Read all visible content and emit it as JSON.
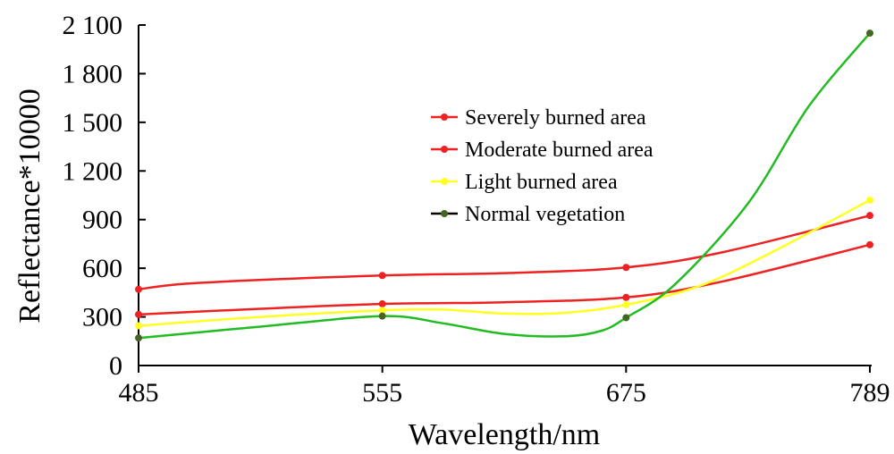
{
  "chart_data": {
    "type": "line",
    "xlabel": "Wavelength/nm",
    "ylabel": "Reflectance*10000",
    "categories": [
      "485",
      "555",
      "675",
      "789"
    ],
    "yticks": [
      "0",
      "300",
      "600",
      "900",
      "1 200",
      "1 500",
      "1 800",
      "2 100"
    ],
    "ylim": [
      0,
      2100
    ],
    "grid": false,
    "legend_position": "center-right",
    "series": [
      {
        "name": "Severely burned area",
        "color": "#ee2222",
        "values": [
          470,
          555,
          605,
          925
        ],
        "curve": [
          [
            0,
            470
          ],
          [
            0.25,
            510
          ],
          [
            1,
            555
          ],
          [
            1.5,
            570
          ],
          [
            2,
            605
          ],
          [
            2.4,
            700
          ],
          [
            3,
            925
          ]
        ]
      },
      {
        "name": "Moderate burned area",
        "color": "#ee2222",
        "values": [
          315,
          380,
          420,
          745
        ],
        "curve": [
          [
            0,
            315
          ],
          [
            0.5,
            350
          ],
          [
            1,
            380
          ],
          [
            1.5,
            390
          ],
          [
            2,
            420
          ],
          [
            2.4,
            520
          ],
          [
            3,
            745
          ]
        ]
      },
      {
        "name": "Light burned area",
        "color": "#ffff22",
        "values": [
          245,
          340,
          375,
          1020
        ],
        "curve": [
          [
            0,
            245
          ],
          [
            0.5,
            300
          ],
          [
            1,
            340
          ],
          [
            1.25,
            345
          ],
          [
            1.5,
            320
          ],
          [
            1.75,
            325
          ],
          [
            2,
            375
          ],
          [
            2.3,
            490
          ],
          [
            2.6,
            700
          ],
          [
            3,
            1020
          ]
        ]
      },
      {
        "name": "Normal vegetation",
        "color": "#22bb22",
        "marker_color": "#446622",
        "values": [
          170,
          305,
          295,
          2050
        ],
        "curve": [
          [
            0,
            170
          ],
          [
            0.5,
            240
          ],
          [
            1,
            305
          ],
          [
            1.25,
            260
          ],
          [
            1.5,
            195
          ],
          [
            1.75,
            180
          ],
          [
            1.9,
            215
          ],
          [
            2,
            295
          ],
          [
            2.2,
            500
          ],
          [
            2.5,
            1000
          ],
          [
            2.75,
            1600
          ],
          [
            3,
            2050
          ]
        ]
      }
    ]
  }
}
